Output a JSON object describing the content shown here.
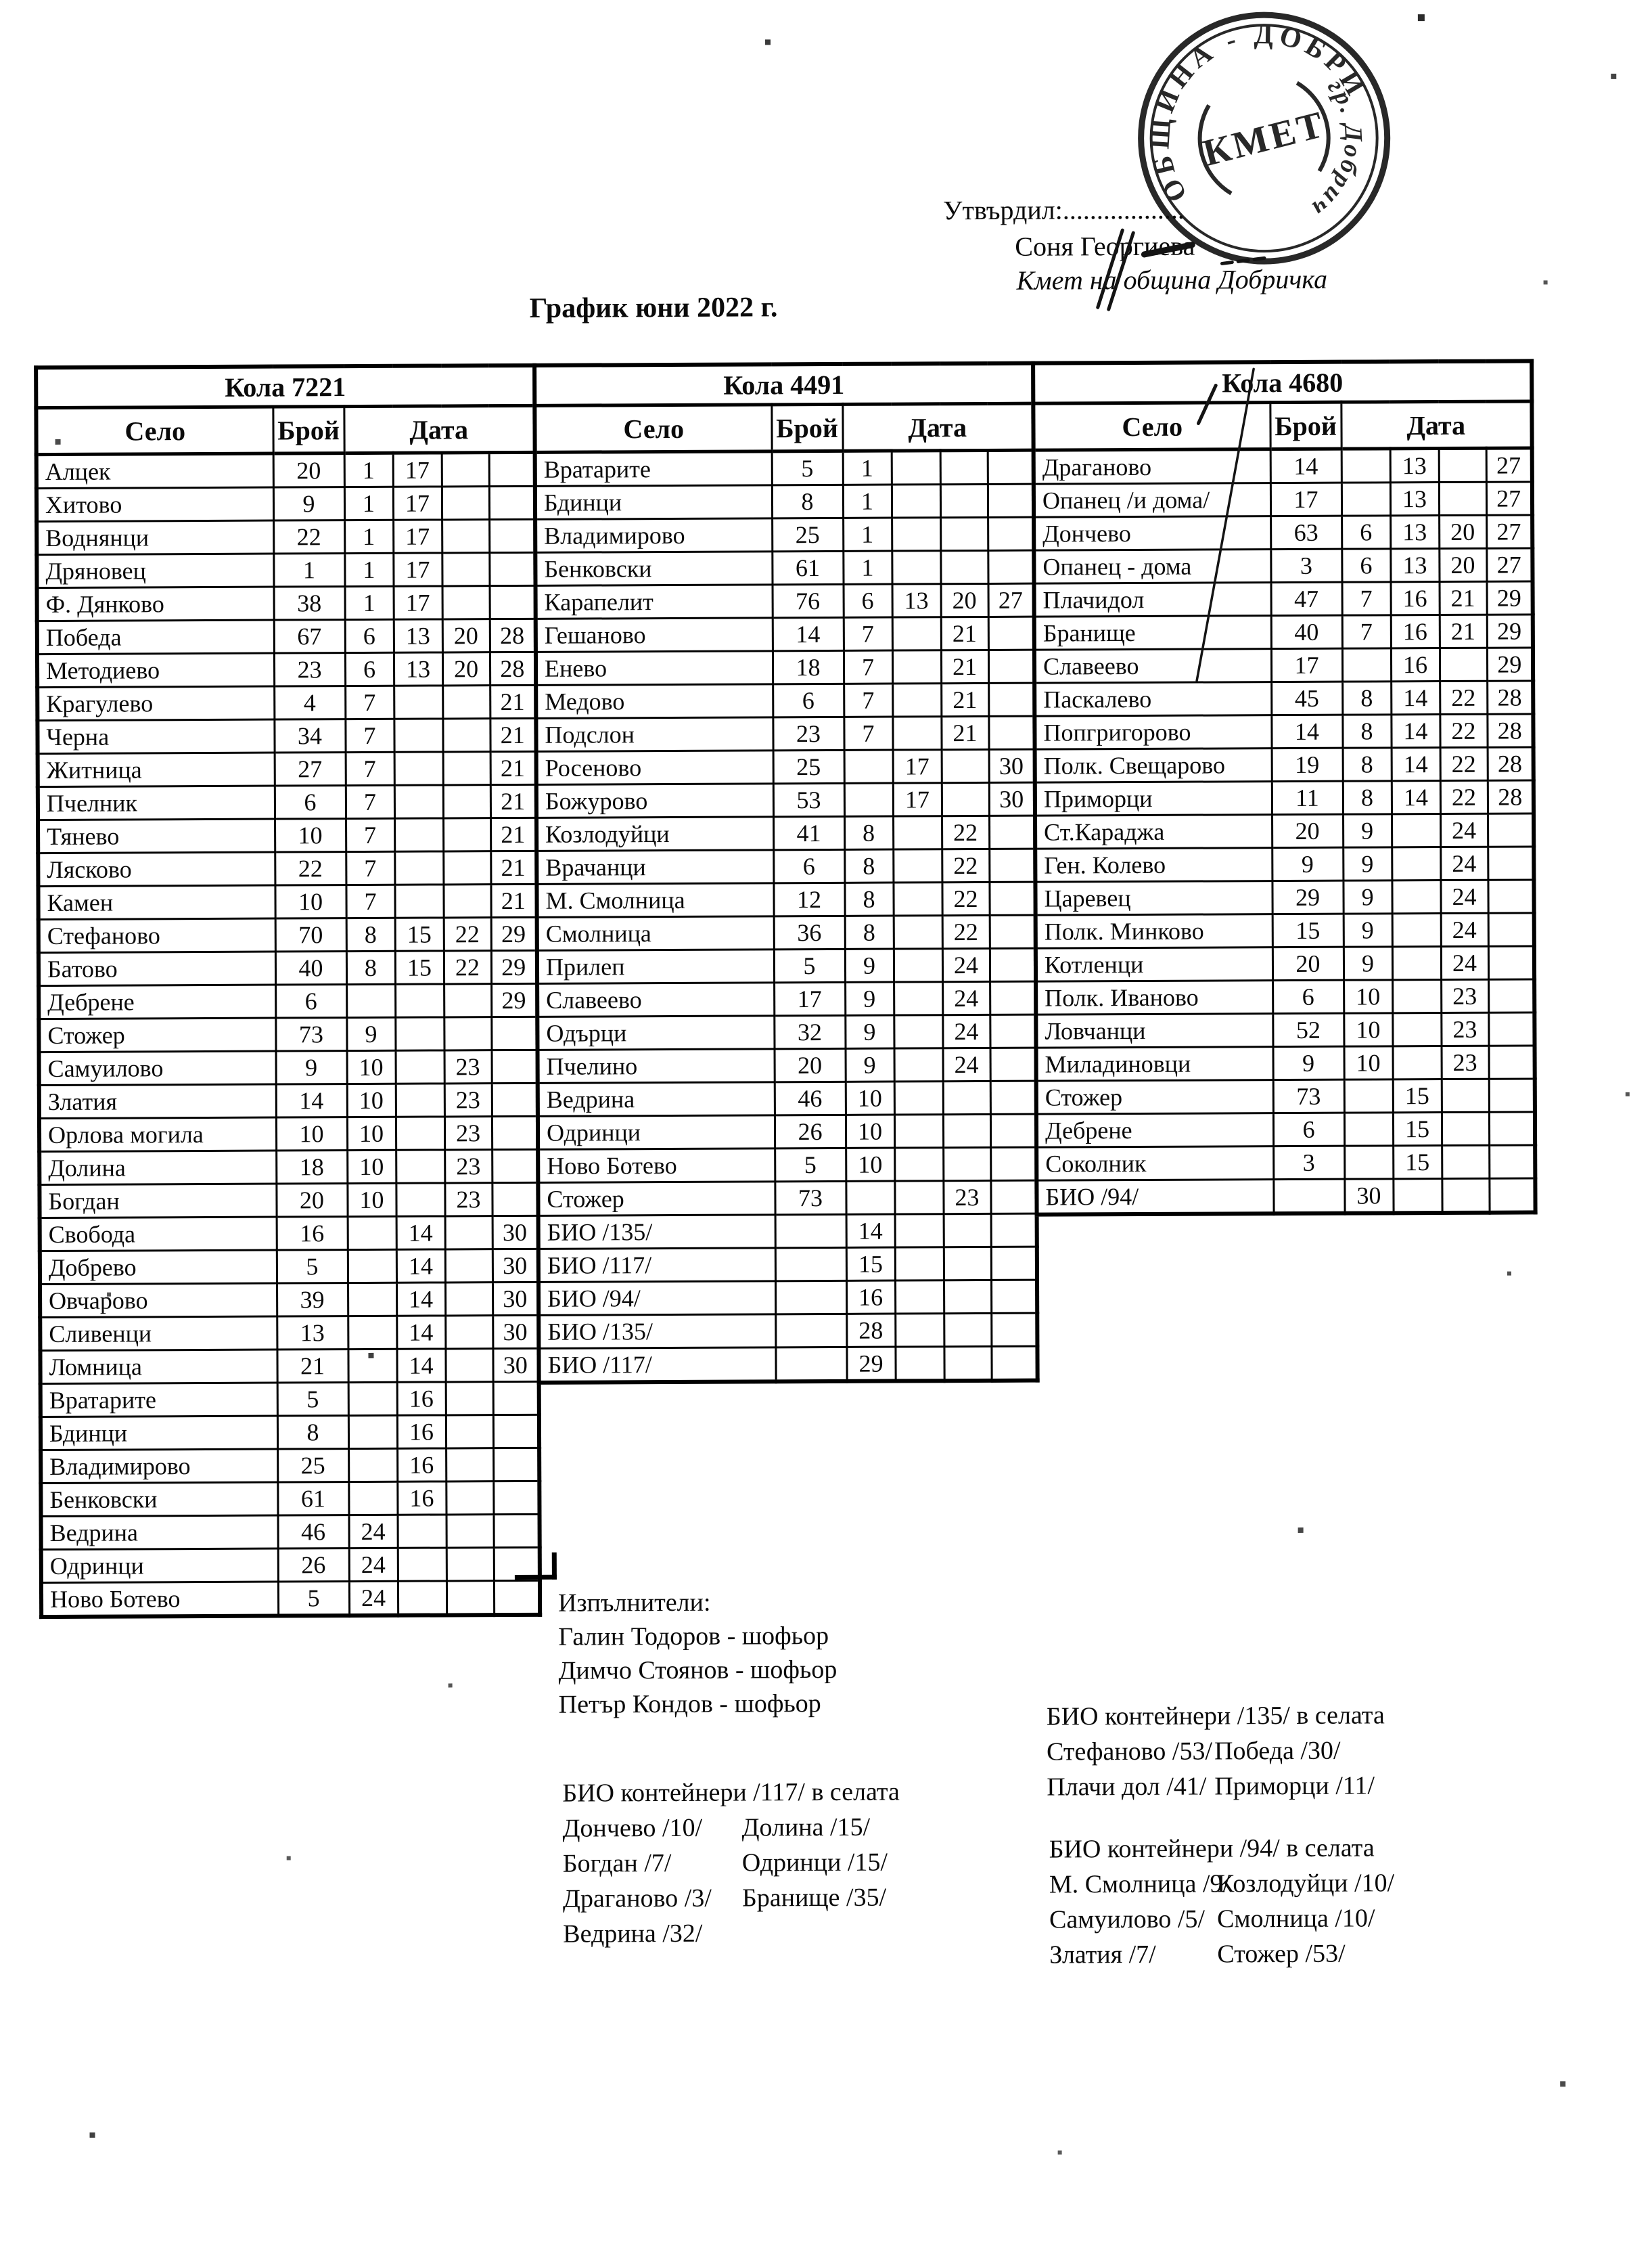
{
  "header": {
    "approved_label": "Утвърдил:..................",
    "approver_name": "Соня Георгиева",
    "approver_title": "Кмет на община Добричка",
    "doc_title": "График юни 2022 г."
  },
  "stamp": {
    "ring_text_top": "ОБЩИНА - ДОБРИЧ",
    "ring_text_side": "гр. Добрич",
    "center_text": "КМЕТ",
    "ink_color": "#161616"
  },
  "table_headers": {
    "village": "Село",
    "count": "Брой",
    "date": "Дата"
  },
  "tables": [
    {
      "name": "Кола 7221",
      "rows": [
        [
          "Алцек",
          "20",
          "1",
          "17",
          "",
          ""
        ],
        [
          "Хитово",
          "9",
          "1",
          "17",
          "",
          ""
        ],
        [
          "Воднянци",
          "22",
          "1",
          "17",
          "",
          ""
        ],
        [
          "Дряновец",
          "1",
          "1",
          "17",
          "",
          ""
        ],
        [
          "Ф. Дянково",
          "38",
          "1",
          "17",
          "",
          ""
        ],
        [
          "Победа",
          "67",
          "6",
          "13",
          "20",
          "28"
        ],
        [
          "Методиево",
          "23",
          "6",
          "13",
          "20",
          "28"
        ],
        [
          "Крагулево",
          "4",
          "7",
          "",
          "",
          "21"
        ],
        [
          "Черна",
          "34",
          "7",
          "",
          "",
          "21"
        ],
        [
          "Житница",
          "27",
          "7",
          "",
          "",
          "21"
        ],
        [
          "Пчелник",
          "6",
          "7",
          "",
          "",
          "21"
        ],
        [
          "Тянево",
          "10",
          "7",
          "",
          "",
          "21"
        ],
        [
          "Лясково",
          "22",
          "7",
          "",
          "",
          "21"
        ],
        [
          "Камен",
          "10",
          "7",
          "",
          "",
          "21"
        ],
        [
          "Стефаново",
          "70",
          "8",
          "15",
          "22",
          "29"
        ],
        [
          "Батово",
          "40",
          "8",
          "15",
          "22",
          "29"
        ],
        [
          "Дебрене",
          "6",
          "",
          "",
          "",
          "29"
        ],
        [
          "Стожер",
          "73",
          "9",
          "",
          "",
          ""
        ],
        [
          "Самуилово",
          "9",
          "10",
          "",
          "23",
          ""
        ],
        [
          "Златия",
          "14",
          "10",
          "",
          "23",
          ""
        ],
        [
          "Орлова могила",
          "10",
          "10",
          "",
          "23",
          ""
        ],
        [
          "Долина",
          "18",
          "10",
          "",
          "23",
          ""
        ],
        [
          "Богдан",
          "20",
          "10",
          "",
          "23",
          ""
        ],
        [
          "Свобода",
          "16",
          "",
          "14",
          "",
          "30"
        ],
        [
          "Добрево",
          "5",
          "",
          "14",
          "",
          "30"
        ],
        [
          "Овчарово",
          "39",
          "",
          "14",
          "",
          "30"
        ],
        [
          "Сливенци",
          "13",
          "",
          "14",
          "",
          "30"
        ],
        [
          "Ломница",
          "21",
          "",
          "14",
          "",
          "30"
        ],
        [
          "Вратарите",
          "5",
          "",
          "16",
          "",
          ""
        ],
        [
          "Бдинци",
          "8",
          "",
          "16",
          "",
          ""
        ],
        [
          "Владимирово",
          "25",
          "",
          "16",
          "",
          ""
        ],
        [
          "Бенковски",
          "61",
          "",
          "16",
          "",
          ""
        ],
        [
          "Ведрина",
          "46",
          "24",
          "",
          "",
          ""
        ],
        [
          "Одринци",
          "26",
          "24",
          "",
          "",
          ""
        ],
        [
          "Ново Ботево",
          "5",
          "24",
          "",
          "",
          ""
        ]
      ]
    },
    {
      "name": "Кола 4491",
      "rows": [
        [
          "Вратарите",
          "5",
          "1",
          "",
          "",
          ""
        ],
        [
          "Бдинци",
          "8",
          "1",
          "",
          "",
          ""
        ],
        [
          "Владимирово",
          "25",
          "1",
          "",
          "",
          ""
        ],
        [
          "Бенковски",
          "61",
          "1",
          "",
          "",
          ""
        ],
        [
          "Карапелит",
          "76",
          "6",
          "13",
          "20",
          "27"
        ],
        [
          "Гешаново",
          "14",
          "7",
          "",
          "21",
          ""
        ],
        [
          "Енево",
          "18",
          "7",
          "",
          "21",
          ""
        ],
        [
          "Медово",
          "6",
          "7",
          "",
          "21",
          ""
        ],
        [
          "Подслон",
          "23",
          "7",
          "",
          "21",
          ""
        ],
        [
          "Росеново",
          "25",
          "",
          "17",
          "",
          "30"
        ],
        [
          "Божурово",
          "53",
          "",
          "17",
          "",
          "30"
        ],
        [
          "Козлодуйци",
          "41",
          "8",
          "",
          "22",
          ""
        ],
        [
          "Врачанци",
          "6",
          "8",
          "",
          "22",
          ""
        ],
        [
          "М. Смолница",
          "12",
          "8",
          "",
          "22",
          ""
        ],
        [
          "Смолница",
          "36",
          "8",
          "",
          "22",
          ""
        ],
        [
          "Прилеп",
          "5",
          "9",
          "",
          "24",
          ""
        ],
        [
          "Славеево",
          "17",
          "9",
          "",
          "24",
          ""
        ],
        [
          "Одърци",
          "32",
          "9",
          "",
          "24",
          ""
        ],
        [
          "Пчелино",
          "20",
          "9",
          "",
          "24",
          ""
        ],
        [
          "Ведрина",
          "46",
          "10",
          "",
          "",
          ""
        ],
        [
          "Одринци",
          "26",
          "10",
          "",
          "",
          ""
        ],
        [
          "Ново Ботево",
          "5",
          "10",
          "",
          "",
          ""
        ],
        [
          "Стожер",
          "73",
          "",
          "",
          "23",
          ""
        ],
        [
          "БИО /135/",
          "",
          "14",
          "",
          "",
          ""
        ],
        [
          "БИО /117/",
          "",
          "15",
          "",
          "",
          ""
        ],
        [
          "БИО /94/",
          "",
          "16",
          "",
          "",
          ""
        ],
        [
          "БИО /135/",
          "",
          "28",
          "",
          "",
          ""
        ],
        [
          "БИО /117/",
          "",
          "29",
          "",
          "",
          ""
        ]
      ]
    },
    {
      "name": "Кола 4680",
      "rows": [
        [
          "Драганово",
          "14",
          "",
          "13",
          "",
          "27"
        ],
        [
          "Опанец /и дома/",
          "17",
          "",
          "13",
          "",
          "27"
        ],
        [
          "Дончево",
          "63",
          "6",
          "13",
          "20",
          "27"
        ],
        [
          "Опанец - дома",
          "3",
          "6",
          "13",
          "20",
          "27"
        ],
        [
          "Плачидол",
          "47",
          "7",
          "16",
          "21",
          "29"
        ],
        [
          "Бранище",
          "40",
          "7",
          "16",
          "21",
          "29"
        ],
        [
          "Славеево",
          "17",
          "",
          "16",
          "",
          "29"
        ],
        [
          "Паскалево",
          "45",
          "8",
          "14",
          "22",
          "28"
        ],
        [
          "Попгригорово",
          "14",
          "8",
          "14",
          "22",
          "28"
        ],
        [
          "Полк. Свещарово",
          "19",
          "8",
          "14",
          "22",
          "28"
        ],
        [
          "Приморци",
          "11",
          "8",
          "14",
          "22",
          "28"
        ],
        [
          "Ст.Караджа",
          "20",
          "9",
          "",
          "24",
          ""
        ],
        [
          "Ген. Колево",
          "9",
          "9",
          "",
          "24",
          ""
        ],
        [
          "Царевец",
          "29",
          "9",
          "",
          "24",
          ""
        ],
        [
          "Полк. Минково",
          "15",
          "9",
          "",
          "24",
          ""
        ],
        [
          "Котленци",
          "20",
          "9",
          "",
          "24",
          ""
        ],
        [
          "Полк. Иваново",
          "6",
          "10",
          "",
          "23",
          ""
        ],
        [
          "Ловчанци",
          "52",
          "10",
          "",
          "23",
          ""
        ],
        [
          "Миладиновци",
          "9",
          "10",
          "",
          "23",
          ""
        ],
        [
          "Стожер",
          "73",
          "",
          "15",
          "",
          ""
        ],
        [
          "Дебрене",
          "6",
          "",
          "15",
          "",
          ""
        ],
        [
          "Соколник",
          "3",
          "",
          "15",
          "",
          ""
        ],
        [
          "БИО /94/",
          "",
          "30",
          "",
          "",
          ""
        ]
      ]
    }
  ],
  "executors": {
    "heading": "Изпълнители:",
    "items": [
      "Галин Тодоров - шофьор",
      "Димчо Стоянов - шофьор",
      "Петър Кондов - шофьор"
    ]
  },
  "bio_notes": [
    {
      "heading": "БИО контейнери /135/ в селата",
      "pairs": [
        [
          "Стефаново /53/",
          "Победа /30/"
        ],
        [
          "Плачи дол /41/",
          "Приморци /11/"
        ]
      ]
    },
    {
      "heading": "БИО контейнери /117/ в селата",
      "pairs": [
        [
          "Дончево /10/",
          "Долина /15/"
        ],
        [
          "Богдан /7/",
          "Одринци /15/"
        ],
        [
          "Драганово /3/",
          "Бранище /35/"
        ],
        [
          "Ведрина /32/",
          ""
        ]
      ]
    },
    {
      "heading": "БИО контейнери /94/ в селата",
      "pairs": [
        [
          "М. Смолница /9/",
          "Козлодуйци /10/"
        ],
        [
          "Самуилово /5/",
          "Смолница /10/"
        ],
        [
          "Златия /7/",
          "Стожер /53/"
        ]
      ]
    }
  ]
}
